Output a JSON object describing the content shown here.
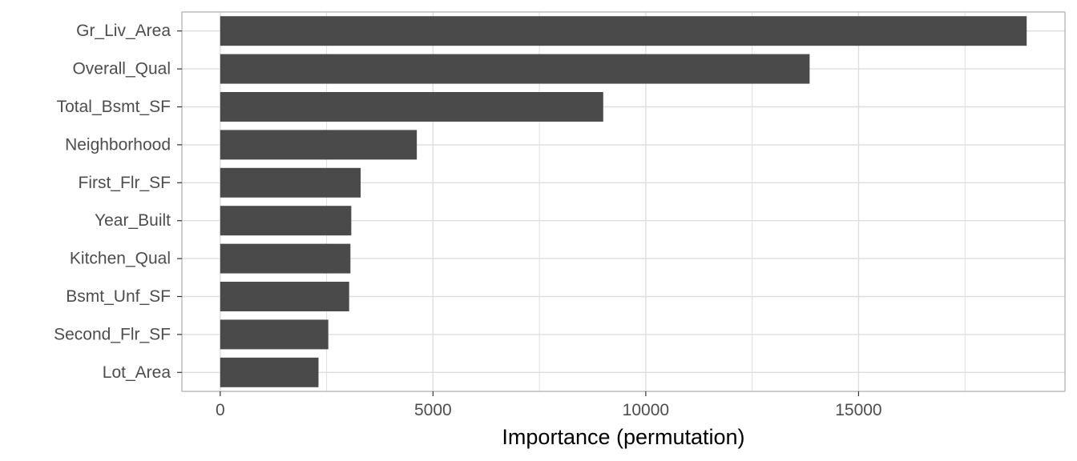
{
  "chart_data": {
    "type": "bar",
    "orientation": "horizontal",
    "categories": [
      "Gr_Liv_Area",
      "Overall_Qual",
      "Total_Bsmt_SF",
      "Neighborhood",
      "First_Flr_SF",
      "Year_Built",
      "Kitchen_Qual",
      "Bsmt_Unf_SF",
      "Second_Flr_SF",
      "Lot_Area"
    ],
    "values": [
      18950,
      13850,
      9000,
      4620,
      3300,
      3080,
      3060,
      3030,
      2540,
      2310
    ],
    "xlabel": "Importance (permutation)",
    "ylabel": "",
    "xlim": [
      -900,
      19850
    ],
    "xticks": [
      0,
      5000,
      10000,
      15000
    ],
    "xtick_labels": [
      "0",
      "5000",
      "10000",
      "15000"
    ],
    "grid": true,
    "colors": {
      "bar": "#4a4a4a",
      "grid": "#dedede",
      "panel_border": "#b3b3b3"
    }
  }
}
